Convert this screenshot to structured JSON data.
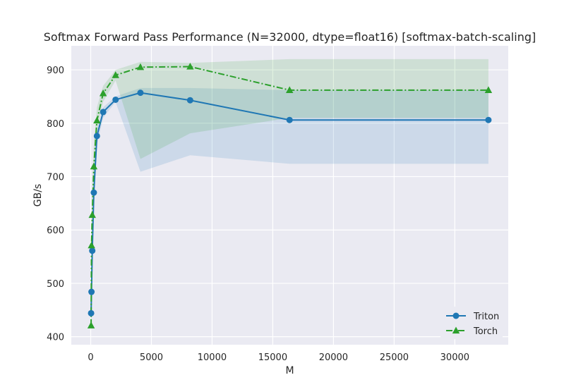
{
  "chart_data": {
    "type": "line",
    "title": "Softmax Forward Pass Performance (N=32000, dtype=float16) [softmax-batch-scaling]",
    "xlabel": "M",
    "ylabel": "GB/s",
    "xlim": [
      -1600,
      34400
    ],
    "ylim": [
      385,
      945
    ],
    "x_ticks": [
      0,
      5000,
      10000,
      15000,
      20000,
      25000,
      30000
    ],
    "y_ticks": [
      400,
      500,
      600,
      700,
      800,
      900
    ],
    "grid": true,
    "legend_position": "lower-right",
    "series": [
      {
        "name": "Triton",
        "color": "#1f77b4",
        "marker": "circle",
        "line_style": "solid",
        "x": [
          32,
          64,
          128,
          256,
          512,
          1024,
          2048,
          4096,
          8192,
          16384,
          32768
        ],
        "y": [
          444,
          484,
          561,
          670,
          776,
          821,
          844,
          857,
          843,
          806,
          806
        ],
        "band_upper": [
          515,
          540,
          595,
          700,
          790,
          830,
          850,
          866,
          866,
          862,
          862
        ],
        "band_lower": [
          420,
          470,
          550,
          650,
          760,
          810,
          840,
          709,
          740,
          724,
          724
        ]
      },
      {
        "name": "Torch",
        "color": "#2ca02c",
        "marker": "triangle",
        "line_style": "dashdot",
        "x": [
          32,
          64,
          128,
          256,
          512,
          1024,
          2048,
          4096,
          8192,
          16384,
          32768
        ],
        "y": [
          421,
          571,
          628,
          719,
          805,
          856,
          890,
          905,
          906,
          862,
          862
        ],
        "band_upper": [
          470,
          620,
          680,
          760,
          830,
          870,
          900,
          915,
          913,
          920,
          920
        ],
        "band_lower": [
          410,
          560,
          610,
          700,
          790,
          840,
          880,
          733,
          781,
          810,
          810
        ]
      }
    ]
  }
}
